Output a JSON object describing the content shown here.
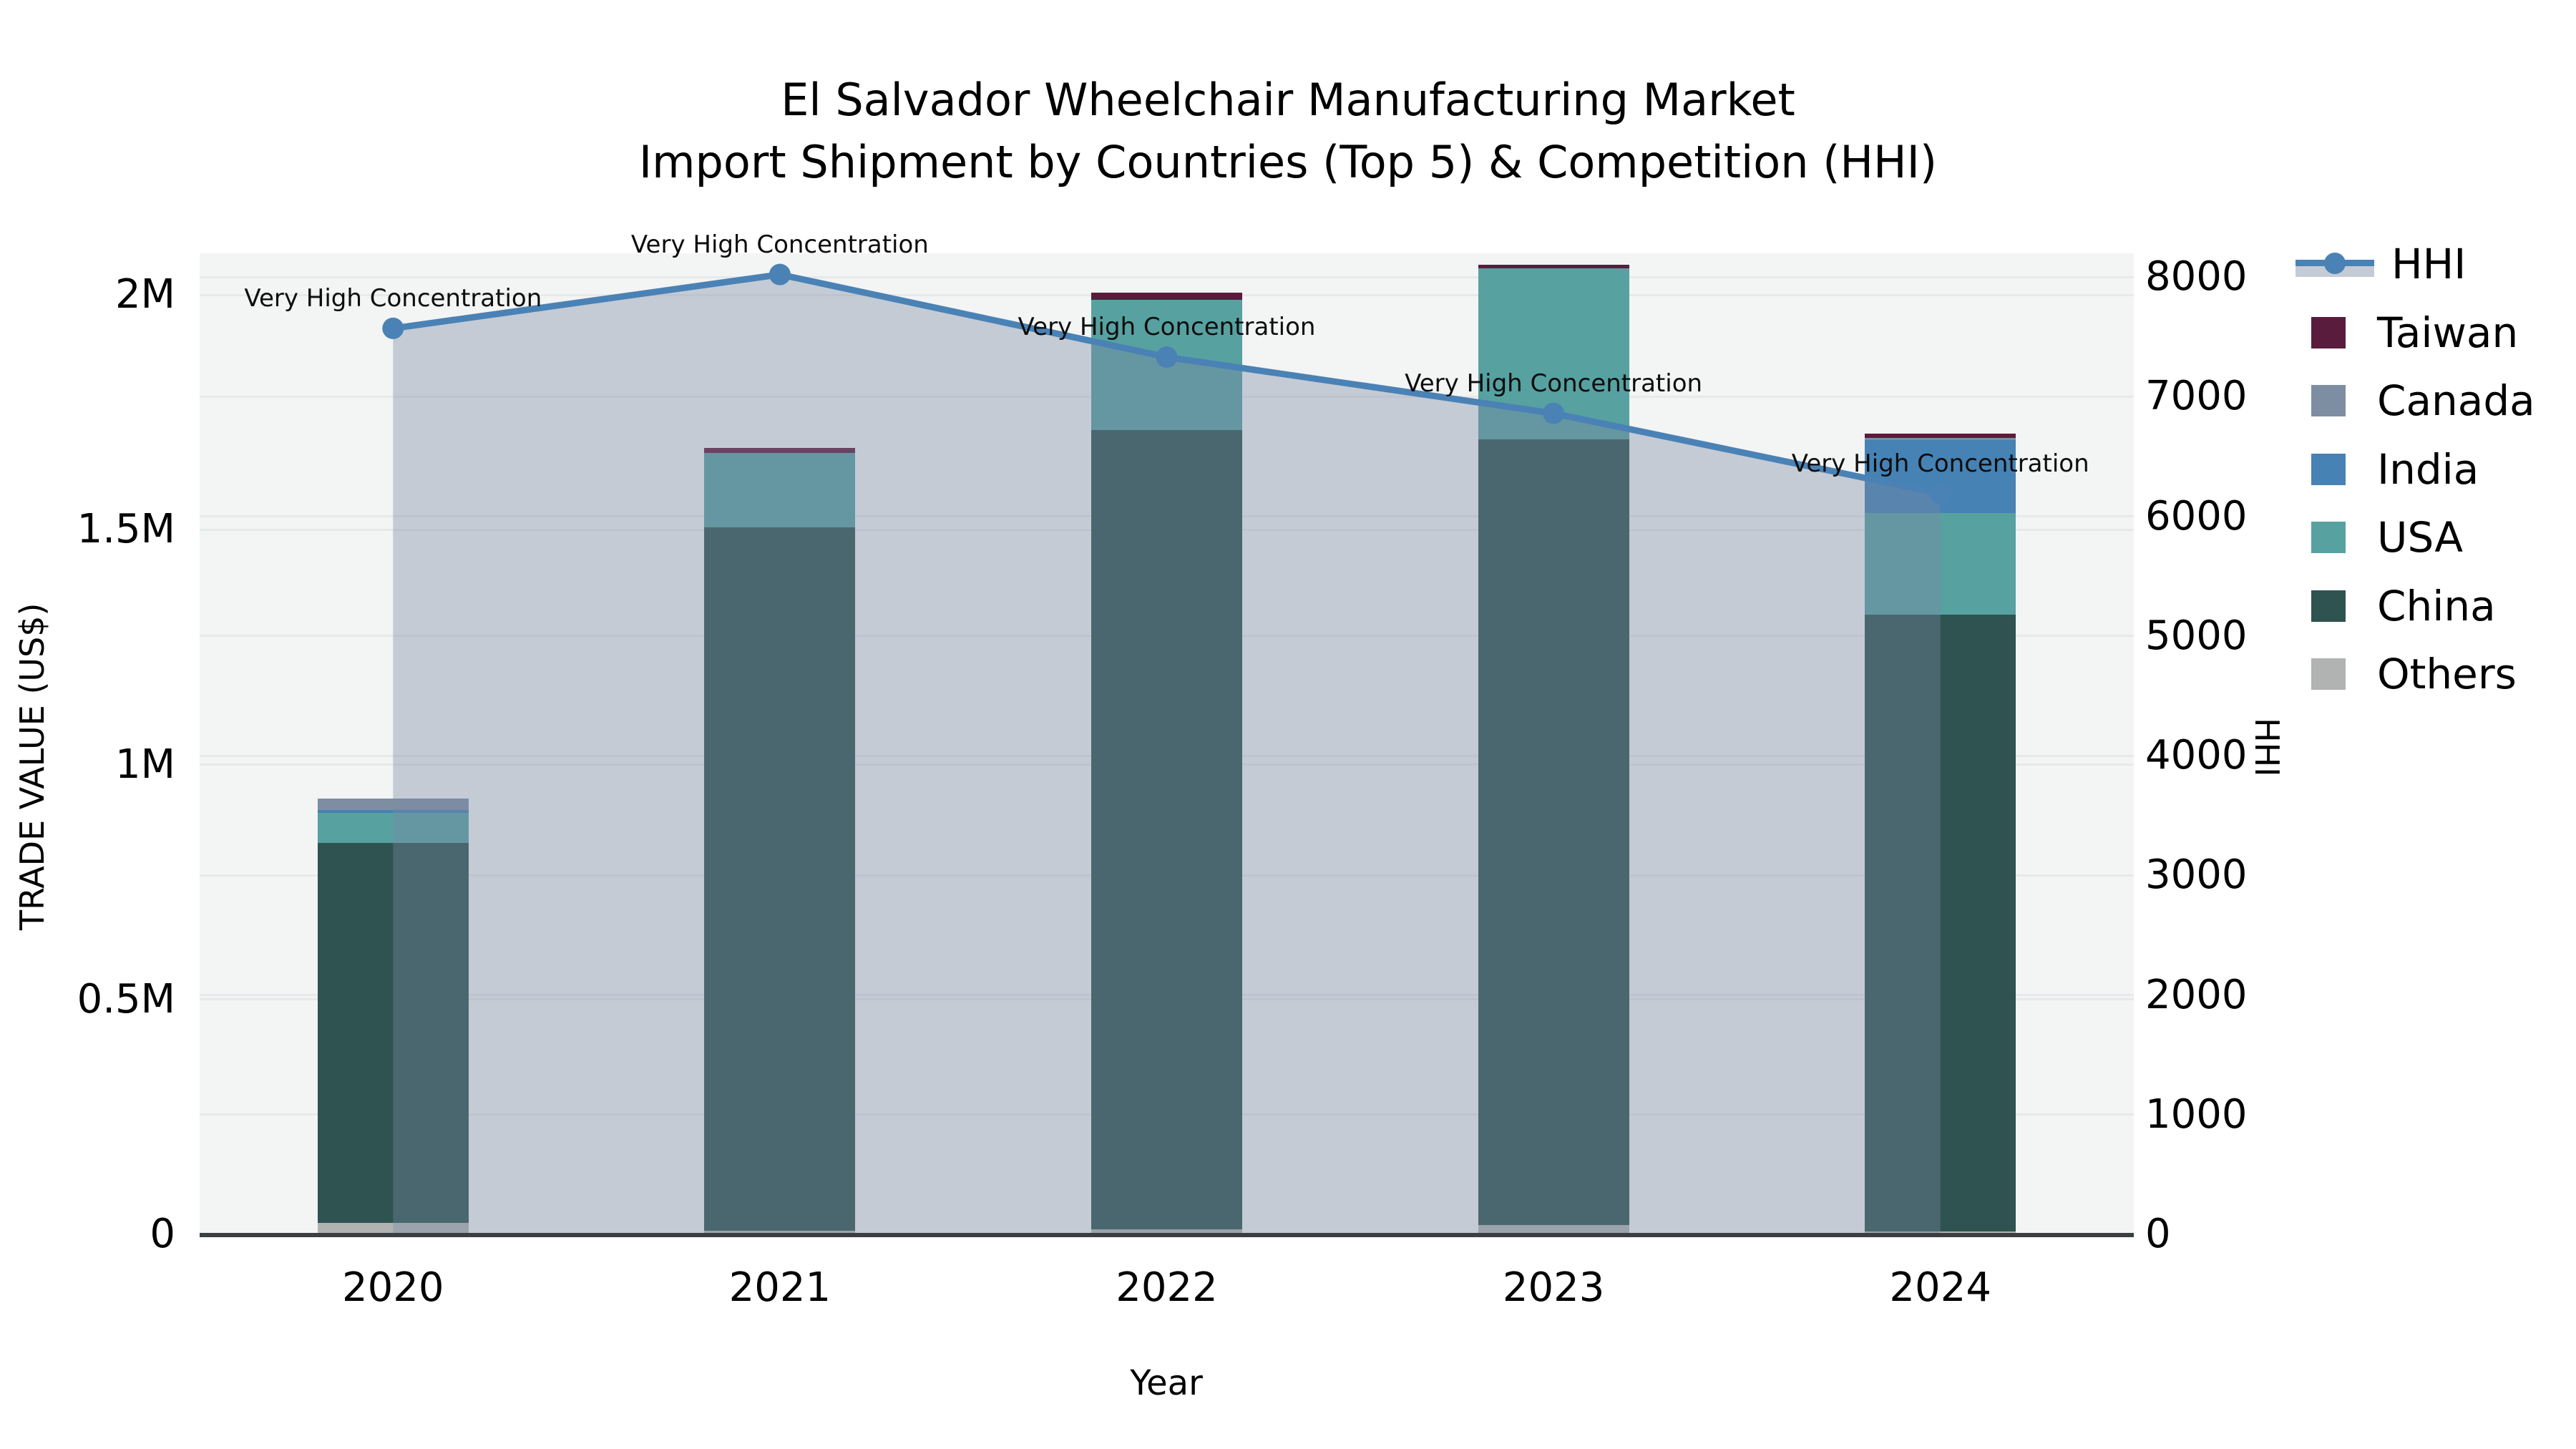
{
  "title": {
    "line1": "El Salvador Wheelchair Manufacturing Market",
    "line2": "Import Shipment by Countries (Top 5) & Competition (HHI)"
  },
  "axes": {
    "x": {
      "label": "Year",
      "ticks": [
        "2020",
        "2021",
        "2022",
        "2023",
        "2024"
      ]
    },
    "y_left": {
      "label": "TRADE VALUE (US$)",
      "ticks": [
        "0",
        "0.5M",
        "1M",
        "1.5M",
        "2M"
      ],
      "tick_values_usd": [
        0,
        500000,
        1000000,
        1500000,
        2000000
      ]
    },
    "y_right": {
      "label": "HHI",
      "ticks": [
        "0",
        "1000",
        "2000",
        "3000",
        "4000",
        "5000",
        "6000",
        "7000",
        "8000"
      ],
      "tick_values": [
        0,
        1000,
        2000,
        3000,
        4000,
        5000,
        6000,
        7000,
        8000
      ]
    }
  },
  "legend": {
    "items": [
      {
        "label": "HHI",
        "type": "line",
        "color": "#4a82b5"
      },
      {
        "label": "Taiwan",
        "type": "patch",
        "color": "#5a1c3c"
      },
      {
        "label": "Canada",
        "type": "patch",
        "color": "#7d8ea3"
      },
      {
        "label": "India",
        "type": "patch",
        "color": "#4682b4"
      },
      {
        "label": "USA",
        "type": "patch",
        "color": "#57a1a1"
      },
      {
        "label": "China",
        "type": "patch",
        "color": "#2e5350"
      },
      {
        "label": "Others",
        "type": "patch",
        "color": "#b0b3b2"
      }
    ]
  },
  "annotations": {
    "text": "Very High Concentration",
    "per_point": [
      "Very High Concentration",
      "Very High Concentration",
      "Very High Concentration",
      "Very High Concentration",
      "Very High Concentration"
    ]
  },
  "chart_data": {
    "type": "bar+line",
    "title": "El Salvador Wheelchair Manufacturing Market — Import Shipment by Countries (Top 5) & Competition (HHI)",
    "xlabel": "Year",
    "ylabel_left": "TRADE VALUE (US$)",
    "ylabel_right": "HHI",
    "ylim_left_usd": [
      0,
      2000000
    ],
    "ylim_right_hhi": [
      0,
      8000
    ],
    "grid": true,
    "legend_position": "right",
    "categories": [
      "2020",
      "2021",
      "2022",
      "2023",
      "2024"
    ],
    "stack_order_bottom_to_top": [
      "Others",
      "China",
      "USA",
      "India",
      "Canada",
      "Taiwan"
    ],
    "series": [
      {
        "name": "Others",
        "type": "bar",
        "axis": "left",
        "values_usd": [
          24000,
          7000,
          10000,
          20000,
          6000
        ]
      },
      {
        "name": "China",
        "type": "bar",
        "axis": "left",
        "values_usd": [
          809000,
          1498000,
          1702000,
          1672000,
          1313000
        ]
      },
      {
        "name": "USA",
        "type": "bar",
        "axis": "left",
        "values_usd": [
          64000,
          159000,
          277000,
          364000,
          217000
        ]
      },
      {
        "name": "India",
        "type": "bar",
        "axis": "left",
        "values_usd": [
          6000,
          0,
          0,
          0,
          155000
        ]
      },
      {
        "name": "Canada",
        "type": "bar",
        "axis": "left",
        "values_usd": [
          25000,
          0,
          0,
          0,
          5000
        ]
      },
      {
        "name": "Taiwan",
        "type": "bar",
        "axis": "left",
        "values_usd": [
          0,
          10000,
          16000,
          8000,
          8000
        ]
      },
      {
        "name": "HHI",
        "type": "line+area",
        "axis": "right",
        "values": [
          7570,
          8020,
          7330,
          6860,
          6190
        ]
      }
    ],
    "bar_totals_usd": [
      928000,
      1674000,
      2005000,
      2064000,
      1704000
    ]
  },
  "colors": {
    "plot_background": "#f3f4f4",
    "figure_background": "#ffffff",
    "gridline": "#e7e9ea",
    "axis_line": "#3a3f42",
    "hhi_line": "#4a82b5",
    "hhi_area_fill": "rgba(120,138,162,0.38)",
    "taiwan": "#5a1c3c",
    "canada": "#7d8ea3",
    "india": "#4682b4",
    "usa": "#57a1a1",
    "china": "#2e5350",
    "others": "#b0b3b2"
  }
}
